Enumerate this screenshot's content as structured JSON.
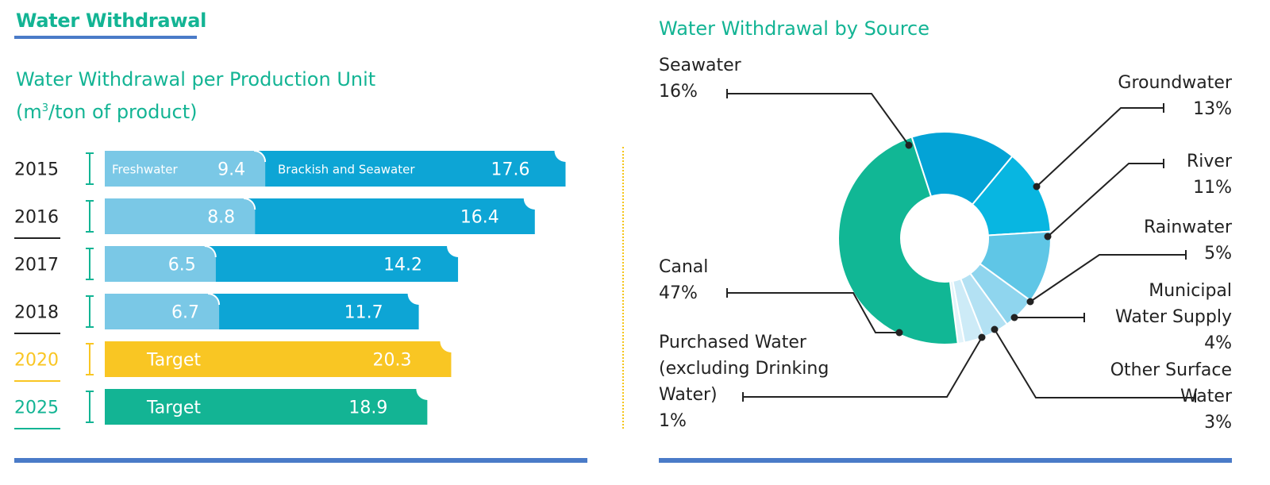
{
  "header": {
    "section_title": "Water Withdrawal",
    "bar_chart_title": "Water Withdrawal per Production Unit",
    "bar_chart_unit_prefix": "(m",
    "bar_chart_unit_sup": "3",
    "bar_chart_unit_suffix": "/ton of product)",
    "pie_chart_title": "Water Withdrawal by Source"
  },
  "colors": {
    "accent_green": "#13b494",
    "freshwater": "#7ac8e6",
    "brackish": "#0da5d5",
    "target_2020": "#f9c623",
    "target_2025": "#13b494",
    "rule": "#4a7bc8"
  },
  "chart_data": [
    {
      "type": "bar",
      "title": "Water Withdrawal per Production Unit",
      "ylabel": "(m3/ton of product)",
      "categories": [
        "2015",
        "2016",
        "2017",
        "2018",
        "2020",
        "2025"
      ],
      "series": [
        {
          "name": "Freshwater",
          "values": [
            9.4,
            8.8,
            6.5,
            6.7,
            null,
            null
          ]
        },
        {
          "name": "Brackish and Seawater",
          "values": [
            17.6,
            16.4,
            14.2,
            11.7,
            null,
            null
          ]
        },
        {
          "name": "Target",
          "values": [
            null,
            null,
            null,
            null,
            20.3,
            18.9
          ]
        }
      ],
      "stacked": true,
      "orientation": "horizontal",
      "target_label": "Target"
    },
    {
      "type": "pie",
      "title": "Water Withdrawal by Source",
      "donut": true,
      "slices": [
        {
          "label": "Seawater",
          "value": 16,
          "display": "16%",
          "color": "#03a3d6"
        },
        {
          "label": "Groundwater",
          "value": 13,
          "display": "13%",
          "color": "#08b6e1"
        },
        {
          "label": "River",
          "value": 11,
          "display": "11%",
          "color": "#5fc6e6"
        },
        {
          "label": "Rainwater",
          "value": 5,
          "display": "5%",
          "color": "#8fd5ee"
        },
        {
          "label": "Municipal Water Supply",
          "value": 4,
          "display": "4%",
          "color": "#b3e1f3"
        },
        {
          "label": "Other Surface Water",
          "value": 3,
          "display": "3%",
          "color": "#cdebf7"
        },
        {
          "label": "Purchased Water (excluding Drinking Water)",
          "value": 1,
          "display": "1%",
          "color": "#e2f3fa"
        },
        {
          "label": "Canal",
          "value": 47,
          "display": "47%",
          "color": "#11b795"
        }
      ]
    }
  ],
  "pie_labels": {
    "seawater": {
      "line1": "Seawater",
      "pct": "16%"
    },
    "groundwater": {
      "line1": "Groundwater",
      "pct": "13%"
    },
    "river": {
      "line1": "River",
      "pct": "11%"
    },
    "rainwater": {
      "line1": "Rainwater",
      "pct": "5%"
    },
    "municipal": {
      "line1": "Municipal",
      "line2": "Water Supply",
      "pct": "4%"
    },
    "other_surface": {
      "line1": "Other Surface",
      "line2": "Water",
      "pct": "3%"
    },
    "canal": {
      "line1": "Canal",
      "pct": "47%"
    },
    "purchased": {
      "line1": "Purchased Water",
      "line2": "(excluding Drinking",
      "line3": "Water)",
      "pct": "1%"
    }
  }
}
